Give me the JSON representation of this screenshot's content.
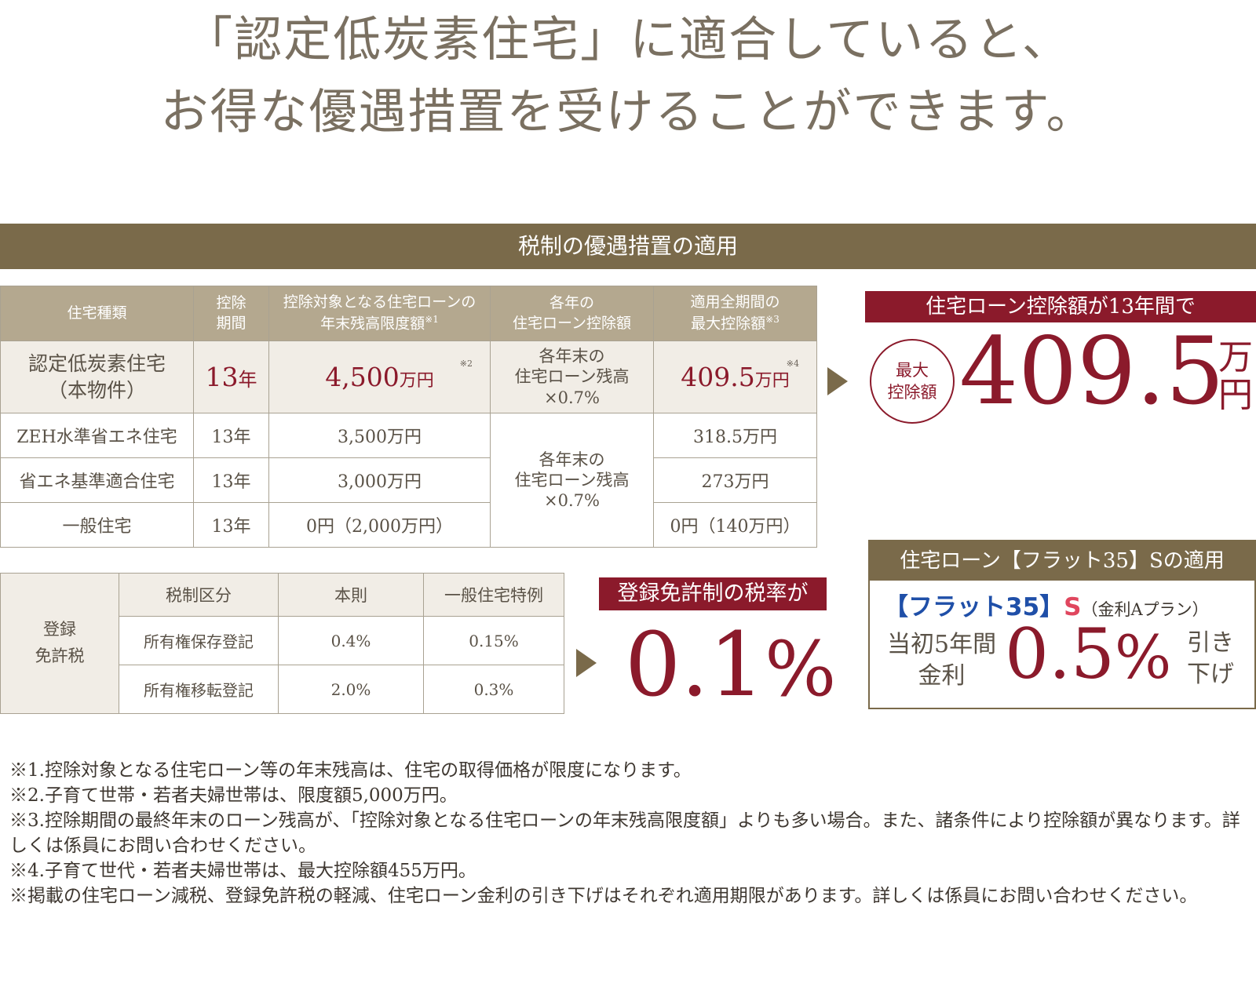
{
  "headline": {
    "line1": "「認定低炭素住宅」に適合していると、",
    "line2": "お得な優遇措置を受けることができます。"
  },
  "section_title": "税制の優遇措置の適用",
  "tax_table": {
    "headers": {
      "type": "住宅種類",
      "period_1": "控除",
      "period_2": "期間",
      "limit_1": "控除対象となる住宅ローンの",
      "limit_2": "年末残高限度額",
      "limit_sup": "※1",
      "annual_1": "各年の",
      "annual_2": "住宅ローン控除額",
      "max_1": "適用全期間の",
      "max_2": "最大控除額",
      "max_sup": "※3"
    },
    "highlight": {
      "type_1": "認定低炭素住宅",
      "type_2": "（本物件）",
      "period_num": "13",
      "period_unit": "年",
      "limit_num": "4,500",
      "limit_unit": "万円",
      "limit_note": "※2",
      "annual_1": "各年末の",
      "annual_2": "住宅ローン残高",
      "annual_3": "×0.7%",
      "max_num": "409.5",
      "max_unit": "万円",
      "max_note": "※4"
    },
    "rows": [
      {
        "type": "ZEH水準省エネ住宅",
        "period": "13年",
        "limit": "3,500万円",
        "max": "318.5万円"
      },
      {
        "type": "省エネ基準適合住宅",
        "period": "13年",
        "limit": "3,000万円",
        "max": "273万円"
      },
      {
        "type": "一般住宅",
        "period": "13年",
        "limit": "0円（2,000万円）",
        "max": "0円（140万円）"
      }
    ],
    "shared_annual_1": "各年末の",
    "shared_annual_2": "住宅ローン残高",
    "shared_annual_3": "×0.7%"
  },
  "loan_callout": {
    "label": "住宅ローン控除額が13年間で",
    "circle_1": "最大",
    "circle_2": "控除額",
    "value": "409.5",
    "unit_1": "万",
    "unit_2": "円"
  },
  "reg_table": {
    "side_1": "登録",
    "side_2": "免許税",
    "headers": [
      "税制区分",
      "本則",
      "一般住宅特例"
    ],
    "rows": [
      {
        "category": "所有権保存登記",
        "standard": "0.4%",
        "special": "0.15%"
      },
      {
        "category": "所有権移転登記",
        "standard": "2.0%",
        "special": "0.3%"
      }
    ]
  },
  "reg_callout": {
    "label": "登録免許制の税率が",
    "value": "0.1",
    "unit": "%"
  },
  "flat35": {
    "title": "住宅ローン【フラット35】Sの適用",
    "logo": "【フラット35】",
    "logo_s": "S",
    "plan": "（金利Aプラン）",
    "left_1": "当初5年間",
    "left_2": "金利",
    "value": "0.5",
    "unit": "%",
    "right_1": "引き",
    "right_2": "下げ"
  },
  "notes": [
    "※1.控除対象となる住宅ローン等の年末残高は、住宅の取得価格が限度になります。",
    "※2.子育て世帯・若者夫婦世帯は、限度額5,000万円。",
    "※3.控除期間の最終年末のローン残高が、「控除対象となる住宅ローンの年末残高限度額」よりも多い場合。また、諸条件により控除額が異なります。詳しくは係員にお問い合わせください。",
    "※4.子育て世代・若者夫婦世帯は、最大控除額455万円。",
    "※掲載の住宅ローン減税、登録免許税の軽減、住宅ローン金利の引き下げはそれぞれ適用期限があります。詳しくは係員にお問い合わせください。"
  ],
  "colors": {
    "accent_brown": "#7a6a4a",
    "header_tan": "#b4a88f",
    "highlight_bg": "#f1ede6",
    "accent_red": "#8b1a2b",
    "flat_blue": "#1f4fa8"
  }
}
